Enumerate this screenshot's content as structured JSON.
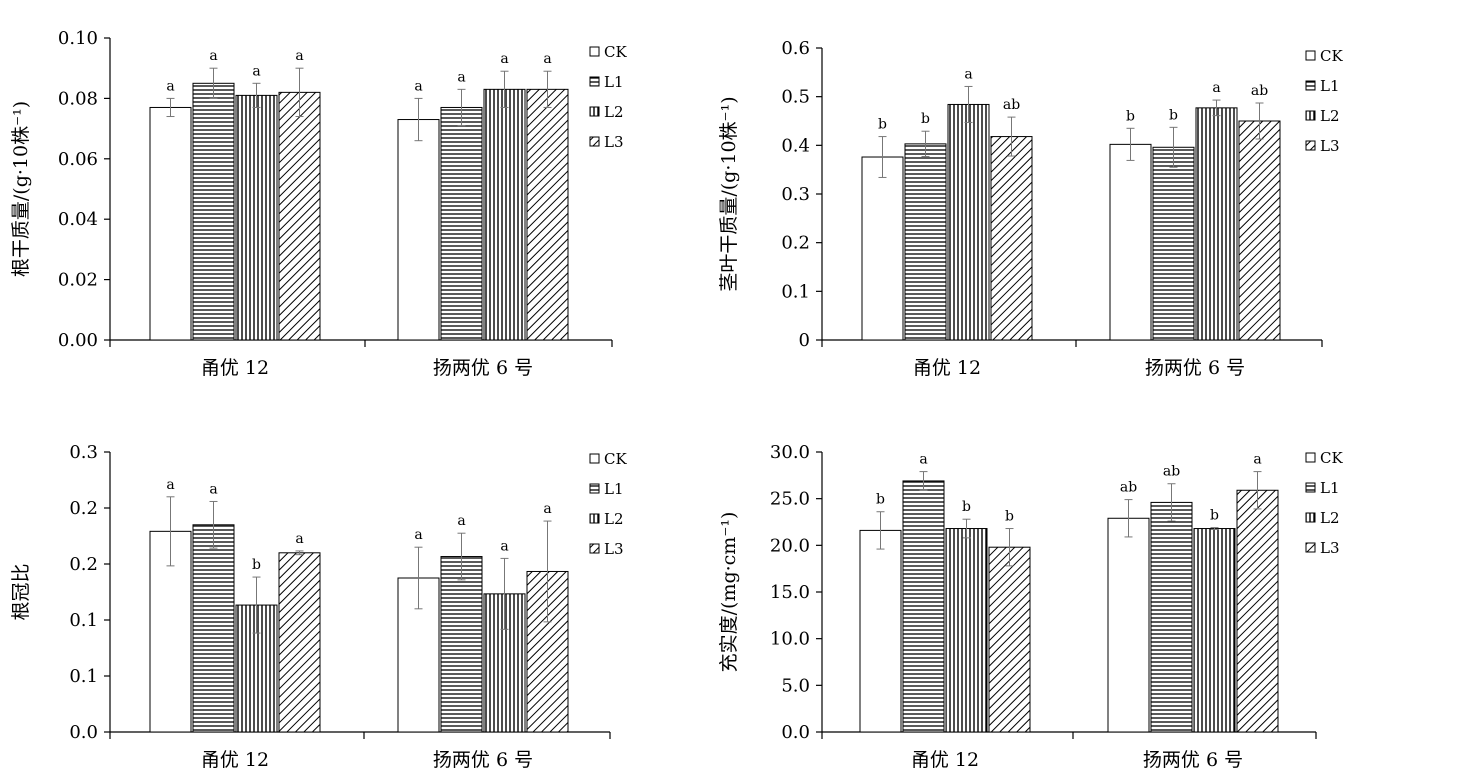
{
  "chart_data": [
    {
      "type": "bar",
      "ylabel": "根干质量/(g·10株⁻¹)",
      "ylim": [
        0,
        0.1
      ],
      "yticks": [
        "0.00",
        "0.02",
        "0.04",
        "0.06",
        "0.08",
        "0.10"
      ],
      "categories": [
        "甬优 12",
        "扬两优 6 号"
      ],
      "series": [
        {
          "name": "CK",
          "values": [
            0.077,
            0.073
          ],
          "errors": [
            0.003,
            0.007
          ],
          "letters": [
            "a",
            "a"
          ]
        },
        {
          "name": "L1",
          "values": [
            0.085,
            0.077
          ],
          "errors": [
            0.005,
            0.006
          ],
          "letters": [
            "a",
            "a"
          ]
        },
        {
          "name": "L2",
          "values": [
            0.081,
            0.083
          ],
          "errors": [
            0.004,
            0.006
          ],
          "letters": [
            "a",
            "a"
          ]
        },
        {
          "name": "L3",
          "values": [
            0.082,
            0.083
          ],
          "errors": [
            0.008,
            0.006
          ],
          "letters": [
            "a",
            "a"
          ]
        }
      ],
      "legend": "right"
    },
    {
      "type": "bar",
      "ylabel": "茎叶干质量/(g·10株⁻¹)",
      "ylim": [
        0,
        0.6
      ],
      "yticks": [
        "0",
        "0.1",
        "0.2",
        "0.3",
        "0.4",
        "0.5",
        "0.6"
      ],
      "categories": [
        "甬优 12",
        "扬两优 6 号"
      ],
      "series": [
        {
          "name": "CK",
          "values": [
            0.376,
            0.402
          ],
          "errors": [
            0.042,
            0.033
          ],
          "letters": [
            "b",
            "b"
          ]
        },
        {
          "name": "L1",
          "values": [
            0.403,
            0.396
          ],
          "errors": [
            0.026,
            0.041
          ],
          "letters": [
            "b",
            "b"
          ]
        },
        {
          "name": "L2",
          "values": [
            0.484,
            0.477
          ],
          "errors": [
            0.037,
            0.016
          ],
          "letters": [
            "a",
            "a"
          ]
        },
        {
          "name": "L3",
          "values": [
            0.418,
            0.45
          ],
          "errors": [
            0.04,
            0.037
          ],
          "letters": [
            "ab",
            "ab"
          ]
        }
      ],
      "legend": "right"
    },
    {
      "type": "bar",
      "ylabel": "根冠比",
      "ylim": [
        0,
        0.3
      ],
      "yticks": [
        "0.0",
        "0.1",
        "0.1",
        "0.2",
        "0.2",
        "0.3"
      ],
      "categories": [
        "甬优 12",
        "扬两优 6 号"
      ],
      "series": [
        {
          "name": "CK",
          "values": [
            0.215,
            0.165
          ],
          "errors": [
            0.037,
            0.033
          ],
          "letters": [
            "a",
            "a"
          ]
        },
        {
          "name": "L1",
          "values": [
            0.222,
            0.188
          ],
          "errors": [
            0.025,
            0.025
          ],
          "letters": [
            "a",
            "a"
          ]
        },
        {
          "name": "L2",
          "values": [
            0.136,
            0.148
          ],
          "errors": [
            0.03,
            0.038
          ],
          "letters": [
            "b",
            "a"
          ]
        },
        {
          "name": "L3",
          "values": [
            0.192,
            0.172
          ],
          "errors": [
            0.002,
            0.054
          ],
          "letters": [
            "a",
            "a"
          ]
        }
      ],
      "legend": "right"
    },
    {
      "type": "bar",
      "ylabel": "充实度/(mg·cm⁻¹)",
      "ylim": [
        0,
        30
      ],
      "yticks": [
        "0.0",
        "5.0",
        "10.0",
        "15.0",
        "20.0",
        "25.0",
        "30.0"
      ],
      "categories": [
        "甬优 12",
        "扬两优 6 号"
      ],
      "series": [
        {
          "name": "CK",
          "values": [
            21.6,
            22.9
          ],
          "errors": [
            2.0,
            2.0
          ],
          "letters": [
            "b",
            "ab"
          ]
        },
        {
          "name": "L1",
          "values": [
            26.9,
            24.6
          ],
          "errors": [
            1.0,
            2.0
          ],
          "letters": [
            "a",
            "ab"
          ]
        },
        {
          "name": "L2",
          "values": [
            21.8,
            21.8
          ],
          "errors": [
            1.0,
            0.1
          ],
          "letters": [
            "b",
            "b"
          ]
        },
        {
          "name": "L3",
          "values": [
            19.8,
            25.9
          ],
          "errors": [
            2.0,
            2.0
          ],
          "letters": [
            "b",
            "a"
          ]
        }
      ],
      "legend": "right"
    }
  ]
}
